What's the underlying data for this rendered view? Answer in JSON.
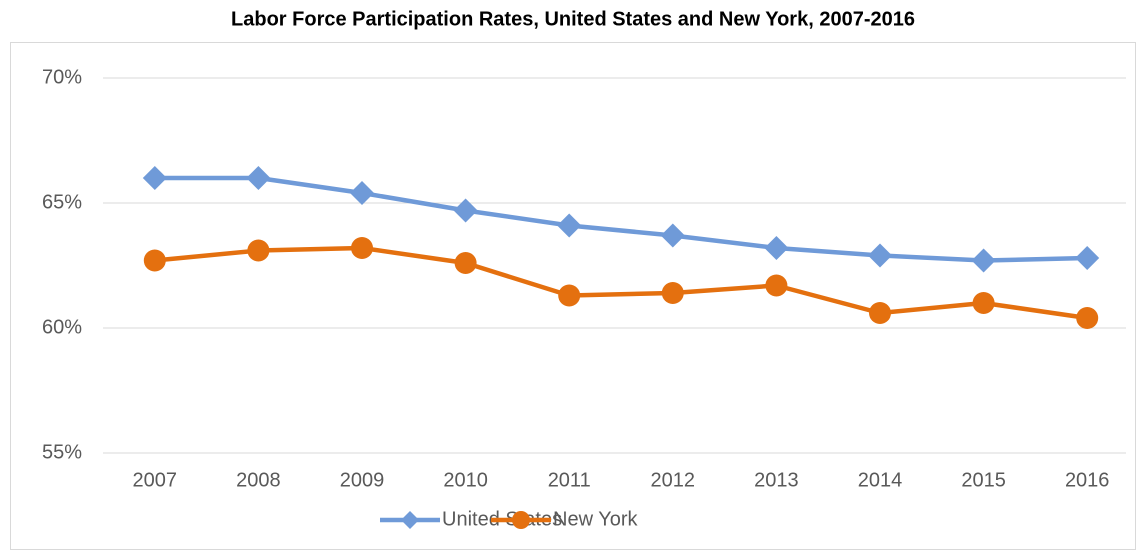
{
  "chart_data": {
    "type": "line",
    "title": "Labor Force Participation Rates, United States and New York, 2007-2016",
    "categories": [
      "2007",
      "2008",
      "2009",
      "2010",
      "2011",
      "2012",
      "2013",
      "2014",
      "2015",
      "2016"
    ],
    "series": [
      {
        "name": "United States",
        "color": "#6f9ad8",
        "marker": "diamond",
        "values": [
          66.0,
          66.0,
          65.4,
          64.7,
          64.1,
          63.7,
          63.2,
          62.9,
          62.7,
          62.8
        ]
      },
      {
        "name": "New York",
        "color": "#e4700f",
        "marker": "circle",
        "values": [
          62.7,
          63.1,
          63.2,
          62.6,
          61.3,
          61.4,
          61.7,
          60.6,
          61.0,
          60.4
        ]
      }
    ],
    "ylim": [
      55,
      70
    ],
    "yticks": [
      {
        "value": 55,
        "label": "55%"
      },
      {
        "value": 60,
        "label": "60%"
      },
      {
        "value": 65,
        "label": "65%"
      },
      {
        "value": 70,
        "label": "70%"
      }
    ],
    "grid": true,
    "legend": "bottom"
  }
}
